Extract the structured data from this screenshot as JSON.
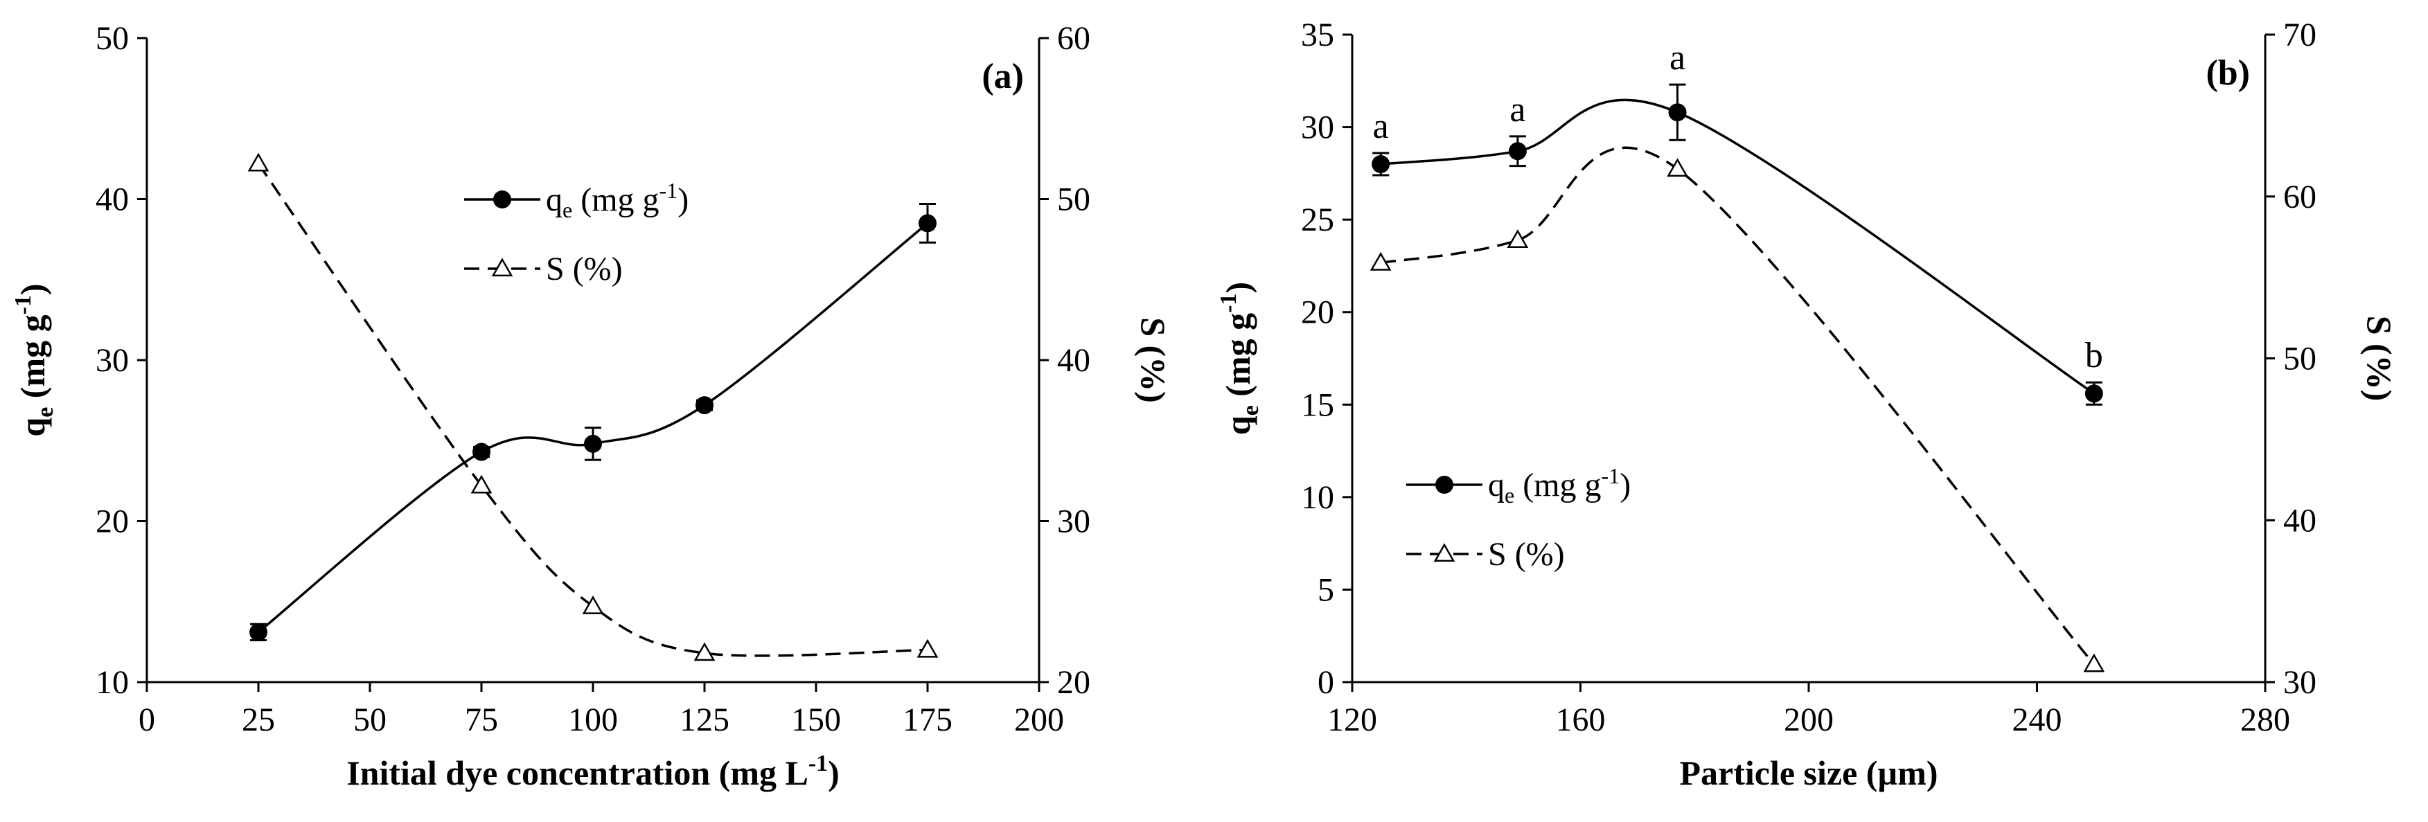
{
  "chart_data": [
    {
      "type": "line",
      "panel_label": "(a)",
      "xlabel": "Initial dye concentration (mg L",
      "xlabel_sup": "-1",
      "xlabel_end": ")",
      "ylabel_left": {
        "main": "q",
        "sub": "e",
        "rest": " (mg g",
        "sup": "-1",
        "end": ")"
      },
      "ylabel_right": "S (%)",
      "xlim": [
        0,
        200
      ],
      "ylim_left": [
        10,
        50
      ],
      "ylim_right": [
        20,
        60
      ],
      "xticks": [
        "0",
        "25",
        "50",
        "75",
        "100",
        "125",
        "150",
        "175",
        "200"
      ],
      "yticks_left": [
        "10",
        "20",
        "30",
        "40",
        "50"
      ],
      "yticks_right": [
        "20",
        "30",
        "40",
        "50",
        "60"
      ],
      "series": [
        {
          "name": "qe (mg g-1)",
          "axis": "left",
          "marker": "filled-circle",
          "line": "solid",
          "legend_main": "q",
          "legend_sub": "e",
          "legend_rest": " (mg g",
          "legend_sup": "-1",
          "legend_end": ")",
          "x": [
            25,
            75,
            100,
            125,
            175
          ],
          "y": [
            13.1,
            24.3,
            24.8,
            27.2,
            38.5
          ],
          "err": [
            0.5,
            0.3,
            1.0,
            0.3,
            1.2
          ]
        },
        {
          "name": "S (%)",
          "axis": "right",
          "marker": "open-triangle",
          "line": "dashed",
          "legend_text": "S (%)",
          "x": [
            25,
            75,
            100,
            125,
            175
          ],
          "y": [
            52.2,
            32.2,
            24.7,
            21.8,
            22.0
          ]
        }
      ]
    },
    {
      "type": "line",
      "panel_label": "(b)",
      "xlabel": "Particle size (µm)",
      "ylabel_left": {
        "main": "q",
        "sub": "e",
        "rest": " (mg g",
        "sup": "-1",
        "end": ")"
      },
      "ylabel_right": "S (%)",
      "xlim": [
        120,
        280
      ],
      "ylim_left": [
        0,
        35
      ],
      "ylim_right": [
        30,
        70
      ],
      "xticks": [
        "120",
        "160",
        "200",
        "240",
        "280"
      ],
      "yticks_left": [
        "0",
        "5",
        "10",
        "15",
        "20",
        "25",
        "30",
        "35"
      ],
      "yticks_right": [
        "30",
        "40",
        "50",
        "60",
        "70"
      ],
      "series": [
        {
          "name": "qe (mg g-1)",
          "axis": "left",
          "marker": "filled-circle",
          "line": "solid",
          "legend_main": "q",
          "legend_sub": "e",
          "legend_rest": " (mg g",
          "legend_sup": "-1",
          "legend_end": ")",
          "x": [
            125,
            149,
            177,
            250
          ],
          "y": [
            28.0,
            28.7,
            30.8,
            15.6
          ],
          "err": [
            0.6,
            0.8,
            1.5,
            0.6
          ],
          "labels": [
            "a",
            "a",
            "a",
            "b"
          ]
        },
        {
          "name": "S (%)",
          "axis": "right",
          "marker": "open-triangle",
          "line": "dashed",
          "legend_text": "S (%)",
          "x": [
            125,
            149,
            177,
            250
          ],
          "y": [
            55.9,
            57.3,
            61.7,
            31.1
          ]
        }
      ]
    }
  ]
}
